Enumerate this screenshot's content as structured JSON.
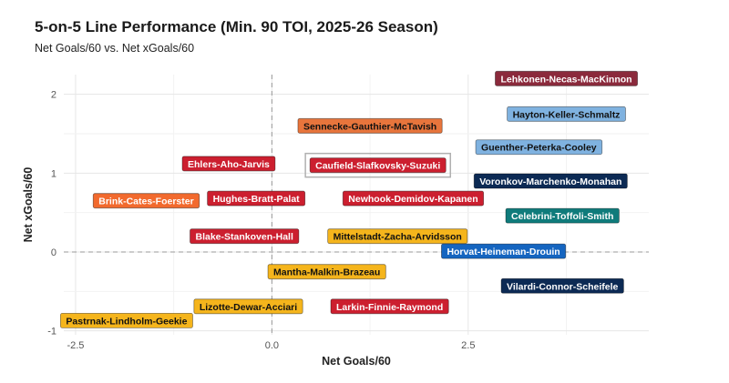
{
  "chart_data": {
    "type": "scatter",
    "title": "5-on-5 Line Performance (Min. 90 TOI, 2025-26 Season)",
    "subtitle": "Net Goals/60 vs. Net xGoals/60",
    "xlabel": "Net Goals/60",
    "ylabel": "Net xGoals/60",
    "xlim": [
      -2.65,
      4.8
    ],
    "ylim": [
      -1.05,
      2.25
    ],
    "xticks": [
      -2.5,
      0.0,
      2.5
    ],
    "xtick_labels": [
      "-2.5",
      "0.0",
      "2.5"
    ],
    "yticks": [
      -1,
      0,
      1,
      2
    ],
    "ytick_labels": [
      "-1",
      "0",
      "1",
      "2"
    ],
    "grid": true,
    "reference_lines": {
      "x": 0,
      "y": 0,
      "style": "dashed"
    },
    "points": [
      {
        "label": "Lehkonen-Necas-MacKinnon",
        "x": 3.75,
        "y": 2.2,
        "fill": "#8b2a3c",
        "text_color": "#ffffff"
      },
      {
        "label": "Hayton-Keller-Schmaltz",
        "x": 3.75,
        "y": 1.75,
        "fill": "#7fb2e0",
        "text_color": "#111111"
      },
      {
        "label": "Sennecke-Gauthier-McTavish",
        "x": 1.25,
        "y": 1.6,
        "fill": "#e8753c",
        "text_color": "#111111"
      },
      {
        "label": "Guenther-Peterka-Cooley",
        "x": 3.4,
        "y": 1.33,
        "fill": "#7fb2e0",
        "text_color": "#111111"
      },
      {
        "label": "Ehlers-Aho-Jarvis",
        "x": -0.55,
        "y": 1.12,
        "fill": "#cc1f2f",
        "text_color": "#ffffff"
      },
      {
        "label": "Caufield-Slafkovsky-Suzuki",
        "x": 1.35,
        "y": 1.1,
        "fill": "#cc1f2f",
        "text_color": "#ffffff",
        "highlighted": true
      },
      {
        "label": "Voronkov-Marchenko-Monahan",
        "x": 3.55,
        "y": 0.9,
        "fill": "#0c2a54",
        "text_color": "#ffffff"
      },
      {
        "label": "Brink-Cates-Foerster",
        "x": -1.6,
        "y": 0.65,
        "fill": "#f26a2e",
        "text_color": "#ffffff"
      },
      {
        "label": "Hughes-Bratt-Palat",
        "x": -0.2,
        "y": 0.68,
        "fill": "#cc1f2f",
        "text_color": "#ffffff"
      },
      {
        "label": "Newhook-Demidov-Kapanen",
        "x": 1.8,
        "y": 0.68,
        "fill": "#cc1f2f",
        "text_color": "#ffffff"
      },
      {
        "label": "Celebrini-Toffoli-Smith",
        "x": 3.7,
        "y": 0.46,
        "fill": "#0f7b7b",
        "text_color": "#ffffff"
      },
      {
        "label": "Blake-Stankoven-Hall",
        "x": -0.35,
        "y": 0.2,
        "fill": "#cc1f2f",
        "text_color": "#ffffff"
      },
      {
        "label": "Mittelstadt-Zacha-Arvidsson",
        "x": 1.6,
        "y": 0.2,
        "fill": "#f5b51c",
        "text_color": "#111111"
      },
      {
        "label": "Horvat-Heineman-Drouin",
        "x": 2.95,
        "y": 0.01,
        "fill": "#1565c0",
        "text_color": "#ffffff"
      },
      {
        "label": "Mantha-Malkin-Brazeau",
        "x": 0.7,
        "y": -0.25,
        "fill": "#f5b51c",
        "text_color": "#111111"
      },
      {
        "label": "Vilardi-Connor-Scheifele",
        "x": 3.7,
        "y": -0.43,
        "fill": "#0c2a54",
        "text_color": "#ffffff"
      },
      {
        "label": "Lizotte-Dewar-Acciari",
        "x": -0.3,
        "y": -0.69,
        "fill": "#f5b51c",
        "text_color": "#111111"
      },
      {
        "label": "Larkin-Finnie-Raymond",
        "x": 1.5,
        "y": -0.69,
        "fill": "#cc1f2f",
        "text_color": "#ffffff"
      },
      {
        "label": "Pastrnak-Lindholm-Geekie",
        "x": -1.85,
        "y": -0.87,
        "fill": "#f5b51c",
        "text_color": "#111111"
      }
    ]
  }
}
